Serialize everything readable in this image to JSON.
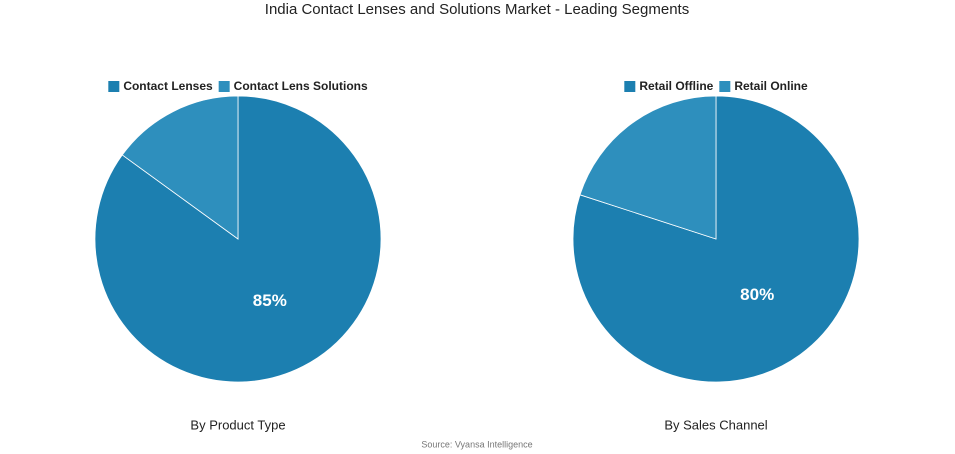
{
  "title": "India Contact Lenses and Solutions Market - Leading Segments",
  "source": "Source: Vyansa Intelligence",
  "chart_data": [
    {
      "type": "pie",
      "subtitle": "By Product Type",
      "legend": "top",
      "categories": [
        "Contact Lenses",
        "Contact Lens Solutions"
      ],
      "values": [
        85,
        15
      ],
      "value_labels": [
        "85%",
        null
      ],
      "colors": [
        "#1c7fb0",
        "#2e8fbd"
      ]
    },
    {
      "type": "pie",
      "subtitle": "By Sales Channel",
      "legend": "top",
      "categories": [
        "Retail Offline",
        "Retail Online"
      ],
      "values": [
        80,
        20
      ],
      "value_labels": [
        "80%",
        null
      ],
      "colors": [
        "#1c7fb0",
        "#2e8fbd"
      ]
    }
  ]
}
